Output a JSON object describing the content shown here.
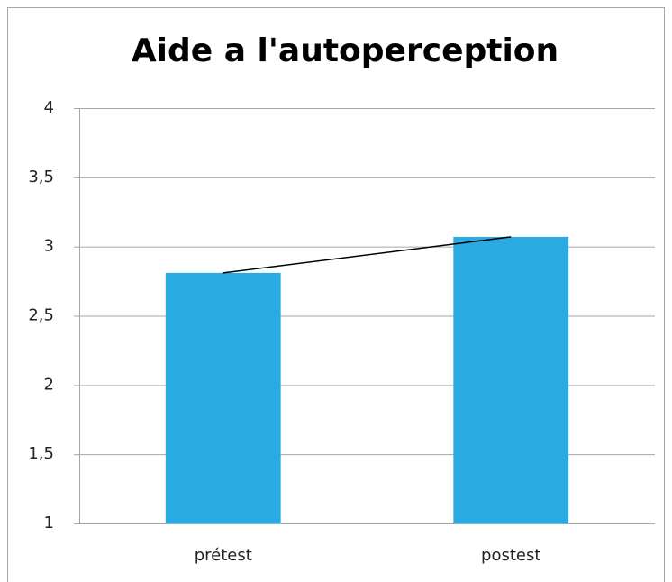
{
  "chart_data": {
    "type": "bar",
    "title": "Aide a l'autoperception",
    "categories": [
      "prétest",
      "postest"
    ],
    "values": [
      2.81,
      3.07
    ],
    "color": "#29abe2",
    "trendline": true,
    "trendline_color": "#000000",
    "ylim": [
      1,
      4
    ],
    "yticks": [
      1,
      {
        "value": 1.5,
        "label": "1,5"
      },
      2,
      {
        "value": 2.5,
        "label": "2,5"
      },
      3,
      {
        "value": 3.5,
        "label": "3,5"
      },
      4
    ],
    "grid": true
  }
}
